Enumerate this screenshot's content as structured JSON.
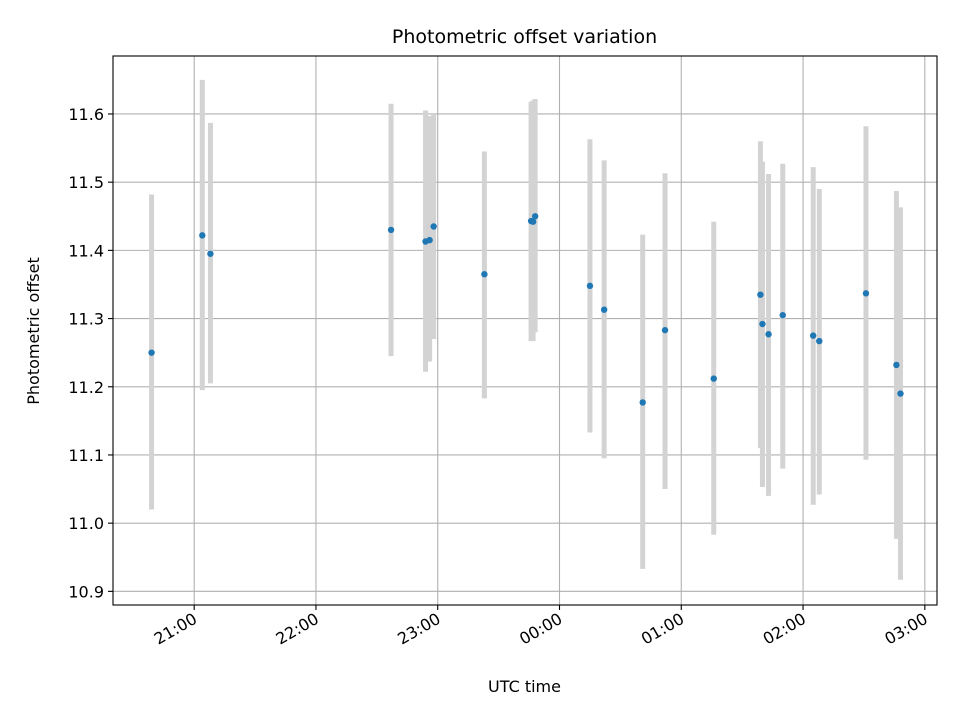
{
  "chart_data": {
    "type": "scatter",
    "title": "Photometric offset variation",
    "xlabel": "UTC time",
    "ylabel": "Photometric offset",
    "xlim": [
      "20:20",
      "03:06"
    ],
    "ylim": [
      10.88,
      11.685
    ],
    "x_ticks": [
      "21:00",
      "22:00",
      "23:00",
      "00:00",
      "01:00",
      "02:00",
      "03:00"
    ],
    "y_ticks": [
      "10.9",
      "11.0",
      "11.1",
      "11.2",
      "11.3",
      "11.4",
      "11.5",
      "11.6"
    ],
    "grid": true,
    "colors": {
      "point": "#1f77b4",
      "errorbar": "#d3d3d3"
    },
    "points": [
      {
        "x": "20:39",
        "y": 11.25,
        "ylow": 11.02,
        "yhigh": 11.482
      },
      {
        "x": "21:04",
        "y": 11.422,
        "ylow": 11.195,
        "yhigh": 11.65
      },
      {
        "x": "21:08",
        "y": 11.395,
        "ylow": 11.205,
        "yhigh": 11.587
      },
      {
        "x": "22:37",
        "y": 11.43,
        "ylow": 11.245,
        "yhigh": 11.615
      },
      {
        "x": "22:54",
        "y": 11.413,
        "ylow": 11.222,
        "yhigh": 11.605
      },
      {
        "x": "22:56",
        "y": 11.415,
        "ylow": 11.237,
        "yhigh": 11.597
      },
      {
        "x": "22:58",
        "y": 11.435,
        "ylow": 11.27,
        "yhigh": 11.6
      },
      {
        "x": "23:23",
        "y": 11.365,
        "ylow": 11.183,
        "yhigh": 11.545
      },
      {
        "x": "23:46",
        "y": 11.443,
        "ylow": 11.267,
        "yhigh": 11.618
      },
      {
        "x": "23:47",
        "y": 11.442,
        "ylow": 11.267,
        "yhigh": 11.62
      },
      {
        "x": "23:48",
        "y": 11.45,
        "ylow": 11.28,
        "yhigh": 11.622
      },
      {
        "x": "00:15",
        "y": 11.348,
        "ylow": 11.133,
        "yhigh": 11.563
      },
      {
        "x": "00:22",
        "y": 11.313,
        "ylow": 11.095,
        "yhigh": 11.532
      },
      {
        "x": "00:41",
        "y": 11.177,
        "ylow": 10.933,
        "yhigh": 11.423
      },
      {
        "x": "00:52",
        "y": 11.283,
        "ylow": 11.05,
        "yhigh": 11.513
      },
      {
        "x": "01:16",
        "y": 11.212,
        "ylow": 10.983,
        "yhigh": 11.442
      },
      {
        "x": "01:39",
        "y": 11.335,
        "ylow": 11.11,
        "yhigh": 11.56
      },
      {
        "x": "01:40",
        "y": 11.292,
        "ylow": 11.053,
        "yhigh": 11.53
      },
      {
        "x": "01:43",
        "y": 11.277,
        "ylow": 11.04,
        "yhigh": 11.512
      },
      {
        "x": "01:50",
        "y": 11.305,
        "ylow": 11.08,
        "yhigh": 11.527
      },
      {
        "x": "02:05",
        "y": 11.275,
        "ylow": 11.027,
        "yhigh": 11.522
      },
      {
        "x": "02:08",
        "y": 11.267,
        "ylow": 11.042,
        "yhigh": 11.49
      },
      {
        "x": "02:31",
        "y": 11.337,
        "ylow": 11.093,
        "yhigh": 11.582
      },
      {
        "x": "02:46",
        "y": 11.232,
        "ylow": 10.977,
        "yhigh": 11.487
      },
      {
        "x": "02:48",
        "y": 11.19,
        "ylow": 10.917,
        "yhigh": 11.463
      }
    ]
  }
}
